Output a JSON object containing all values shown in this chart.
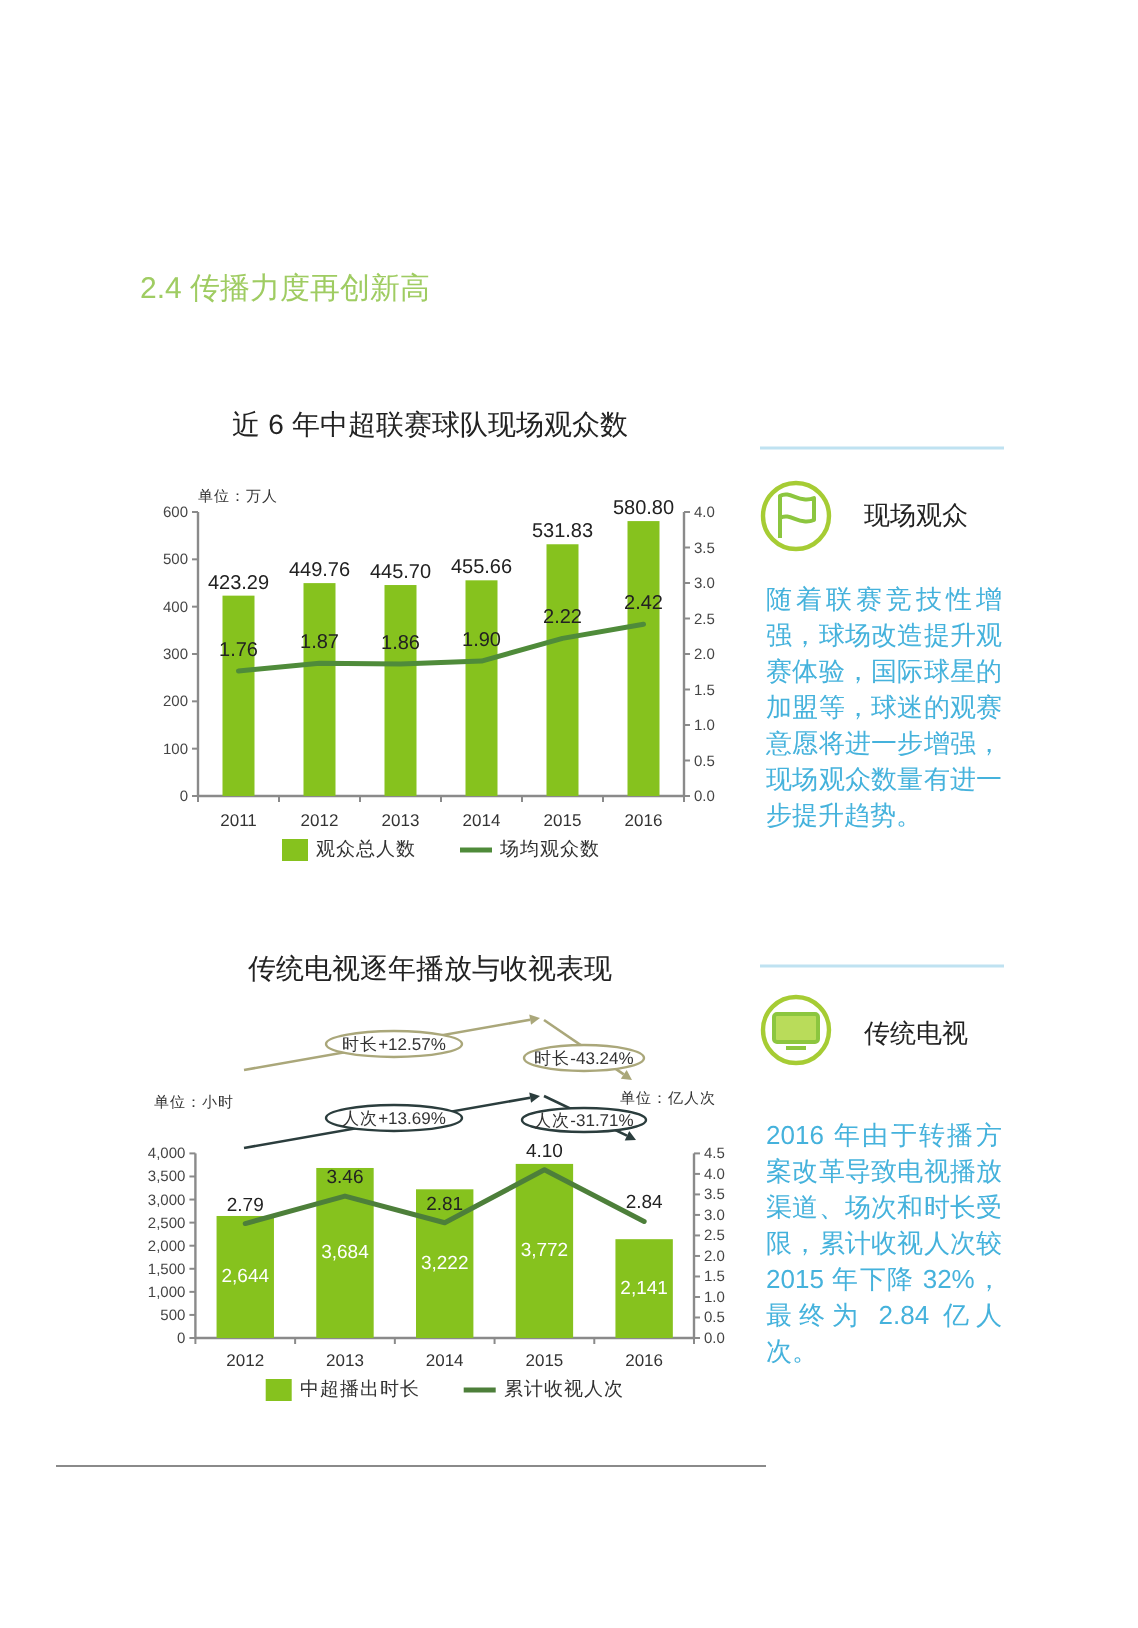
{
  "chart_data": [
    {
      "type": "other",
      "title": "2.4 传播力度再创新高"
    },
    {
      "type": "bar",
      "title": "近 6 年中超联赛球队现场观众数",
      "ylabel": "单位：万人",
      "categories": [
        "2011",
        "2012",
        "2013",
        "2014",
        "2015",
        "2016"
      ],
      "series": [
        {
          "name": "观众总人数",
          "type": "bar",
          "color": "#86c21e",
          "values": [
            423.29,
            449.76,
            445.7,
            455.66,
            531.83,
            580.8
          ],
          "value_labels": [
            "423.29",
            "449.76",
            "445.70",
            "455.66",
            "531.83",
            "580.80"
          ]
        },
        {
          "name": "场均观众数",
          "type": "line",
          "axis": "y2",
          "color": "#4f8b3a",
          "values": [
            1.76,
            1.87,
            1.86,
            1.9,
            2.22,
            2.42
          ],
          "value_labels": [
            "1.76",
            "1.87",
            "1.86",
            "1.90",
            "2.22",
            "2.42"
          ]
        }
      ],
      "ylim": [
        0,
        600
      ],
      "yticks": [
        0,
        100,
        200,
        300,
        400,
        500,
        600
      ],
      "y2lim": [
        0,
        4
      ],
      "y2ticks": [
        {
          "value": 0,
          "label": "0.0"
        },
        0.5,
        {
          "value": 1,
          "label": "1.0"
        },
        1.5,
        {
          "value": 2,
          "label": "2.0"
        },
        2.5,
        {
          "value": 3,
          "label": "3.0"
        },
        3.5,
        {
          "value": 4,
          "label": "4.0"
        }
      ],
      "legend": "bottom"
    },
    {
      "type": "other",
      "title": "现场观众",
      "annotations": [
        "随着联赛竞技性增强，球场改造提升观赛体验，国际球星的加盟等，球迷的观赛意愿将进一步增强，现场观众数量有进一步提升趋势。"
      ]
    },
    {
      "type": "bar",
      "title": "传统电视逐年播放与收视表现",
      "ylabel": "单位：小时",
      "y2label": "单位：亿人次",
      "categories": [
        "2012",
        "2013",
        "2014",
        "2015",
        "2016"
      ],
      "series": [
        {
          "name": "中超播出时长",
          "type": "bar",
          "color": "#86c21e",
          "values": [
            2644,
            3684,
            3222,
            3772,
            2141
          ],
          "value_labels": [
            "2,644",
            "3,684",
            "3,222",
            "3,772",
            "2,141"
          ]
        },
        {
          "name": "累计收视人次",
          "type": "line",
          "axis": "y2",
          "color": "#4d7f3a",
          "values": [
            2.79,
            3.46,
            2.81,
            4.1,
            2.84
          ],
          "value_labels": [
            "2.79",
            "3.46",
            "2.81",
            "4.10",
            "2.84"
          ]
        }
      ],
      "ylim": [
        0,
        4000
      ],
      "yticks": [
        0,
        500,
        {
          "value": 1000,
          "label": "1,000"
        },
        {
          "value": 1500,
          "label": "1,500"
        },
        {
          "value": 2000,
          "label": "2,000"
        },
        {
          "value": 2500,
          "label": "2,500"
        },
        {
          "value": 3000,
          "label": "3,000"
        },
        {
          "value": 3500,
          "label": "3,500"
        },
        {
          "value": 4000,
          "label": "4,000"
        }
      ],
      "y2lim": [
        0,
        4.5
      ],
      "y2ticks": [
        {
          "value": 0,
          "label": "0.0"
        },
        0.5,
        {
          "value": 1,
          "label": "1.0"
        },
        1.5,
        {
          "value": 2,
          "label": "2.0"
        },
        2.5,
        {
          "value": 3,
          "label": "3.0"
        },
        3.5,
        {
          "value": 4,
          "label": "4.0"
        },
        4.5
      ],
      "legend": "bottom",
      "annotations": [
        "时长+12.57%",
        "时长-43.24%",
        "人次+13.69%",
        "人次-31.71%"
      ]
    },
    {
      "type": "other",
      "title": "传统电视",
      "annotations": [
        "2016 年由于转播方案改革导致电视播放渠道、场次和时长受限，累计收视人次较 2015 年下降 32%，最终为 2.84 亿人次。"
      ]
    }
  ]
}
